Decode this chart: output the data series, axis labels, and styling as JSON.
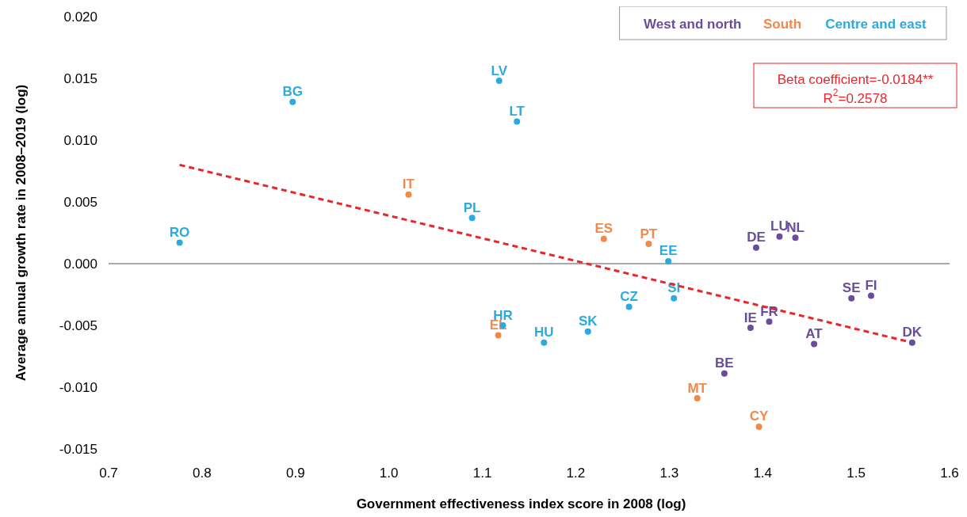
{
  "chart_data": {
    "type": "scatter",
    "xlabel": "Government effectiveness index score in 2008 (log)",
    "ylabel": "Average annual growth rate in 2008–2019 (log)",
    "xlim": [
      0.7,
      1.6
    ],
    "ylim": [
      -0.015,
      0.02
    ],
    "xticks": [
      0.7,
      0.8,
      0.9,
      {
        "value": 1.0,
        "label": "1.0"
      },
      1.1,
      1.2,
      1.3,
      1.4,
      1.5,
      1.6
    ],
    "yticks": [
      {
        "value": -0.015,
        "label": "-0.015"
      },
      {
        "value": -0.01,
        "label": "-0.010"
      },
      {
        "value": -0.005,
        "label": "-0.005"
      },
      {
        "value": 0,
        "label": "0.000"
      },
      {
        "value": 0.005,
        "label": "0.005"
      },
      {
        "value": 0.01,
        "label": "0.010"
      },
      {
        "value": 0.015,
        "label": "0.015"
      },
      {
        "value": 0.02,
        "label": "0.020"
      }
    ],
    "grid": false,
    "marker": "circle",
    "ref_lines": [
      {
        "axis": "y",
        "value": 0,
        "color": "#555555"
      }
    ],
    "annotations": [
      "Beta coefficient=-0.0184**",
      "R$^{2}$=0.2578"
    ],
    "series": [
      {
        "name": "West and north",
        "color": "#6a4c9c",
        "x": [
          1.393,
          1.418,
          1.435,
          1.495,
          1.516,
          1.56,
          1.387,
          1.407,
          1.455,
          1.359
        ],
        "values": [
          0.0013,
          0.0022,
          0.0021,
          -0.0028,
          -0.0026,
          -0.0064,
          -0.0052,
          -0.0047,
          -0.0065,
          -0.0089
        ],
        "value_labels": [
          "DE",
          "LU",
          "NL",
          "SE",
          "FI",
          "DK",
          "IE",
          "FR",
          "AT",
          "BE"
        ]
      },
      {
        "name": "South",
        "color": "#f08a4b",
        "x": [
          1.021,
          1.23,
          1.278,
          1.117,
          1.33,
          1.396
        ],
        "values": [
          0.0056,
          0.002,
          0.0016,
          -0.0058,
          -0.0109,
          -0.0132
        ],
        "value_labels": [
          "IT",
          "ES",
          "PT",
          "EL",
          "MT",
          "CY"
        ]
      },
      {
        "name": "Centre and east",
        "color": "#29abe2",
        "x": [
          0.776,
          0.897,
          1.118,
          1.137,
          1.089,
          1.299,
          1.305,
          1.257,
          1.213,
          1.122,
          1.166
        ],
        "values": [
          0.0017,
          0.0131,
          0.0148,
          0.0115,
          0.0037,
          0.0002,
          -0.0028,
          -0.0035,
          -0.0055,
          -0.005,
          -0.0064
        ],
        "value_labels": [
          "RO",
          "BG",
          "LV",
          "LT",
          "PL",
          "EE",
          "SI",
          "CZ",
          "SK",
          "HR",
          "HU"
        ]
      },
      {
        "type": "line",
        "color": "#e8272a",
        "line_style": "dashed",
        "marker": "none",
        "x": [
          0.776,
          1.555
        ],
        "values": [
          0.008,
          -0.0063
        ]
      }
    ]
  }
}
